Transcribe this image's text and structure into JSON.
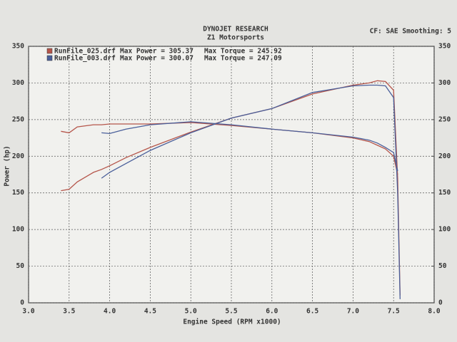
{
  "chart_data": {
    "type": "line",
    "title": "DYNOJET RESEARCH",
    "subtitle": "Z1 Motorsports",
    "settings_text": "CF: SAE  Smoothing: 5",
    "x_label": "Engine Speed (RPM x1000)",
    "y_label": "Power (hp)",
    "x": [
      3.4,
      3.5,
      3.6,
      3.8,
      3.9,
      4.0,
      4.2,
      4.5,
      5.0,
      5.5,
      6.0,
      6.5,
      7.0,
      7.2,
      7.3,
      7.4,
      7.5,
      7.55,
      7.58
    ],
    "series": [
      {
        "name": "RunFile_025.drf",
        "color": "#b5554a",
        "stats": [
          "Max Power = 305.37",
          "Max Torque = 245.92"
        ],
        "values": [
          153,
          155,
          165,
          178,
          182,
          187,
          198,
          212,
          233,
          252,
          265,
          285,
          297,
          300,
          303,
          302,
          290,
          170,
          10
        ],
        "torque": [
          234,
          232,
          240,
          243,
          243,
          244,
          244,
          244,
          246,
          242,
          237,
          232,
          225,
          220,
          215,
          210,
          200,
          175,
          null
        ]
      },
      {
        "name": "RunFile_003.drf",
        "color": "#4a5f9a",
        "stats": [
          "Max Power = 300.07",
          "Max Torque = 247.09"
        ],
        "values": [
          null,
          null,
          null,
          null,
          170,
          178,
          190,
          208,
          232,
          252,
          265,
          287,
          296,
          297,
          297,
          296,
          280,
          150,
          5
        ],
        "torque": [
          null,
          null,
          null,
          null,
          232,
          231,
          237,
          243,
          247,
          243,
          237,
          232,
          226,
          222,
          218,
          212,
          205,
          180,
          null
        ]
      }
    ],
    "xlim": [
      3,
      8
    ],
    "xticks": [
      {
        "value": 3,
        "label": "3.0"
      },
      3.5,
      {
        "value": 4,
        "label": "4.0"
      },
      4.5,
      {
        "value": 5,
        "label": "5.0"
      },
      5.5,
      {
        "value": 6,
        "label": "6.0"
      },
      6.5,
      {
        "value": 7,
        "label": "7.0"
      },
      7.5,
      {
        "value": 8,
        "label": "8.0"
      }
    ],
    "ylim": [
      0,
      350
    ],
    "yticks": [
      0,
      50,
      100,
      150,
      200,
      250,
      300,
      350
    ],
    "y2lim": [
      0,
      350
    ],
    "y2ticks": [
      0,
      50,
      100,
      150,
      200,
      250,
      300,
      350
    ],
    "grid": true
  }
}
